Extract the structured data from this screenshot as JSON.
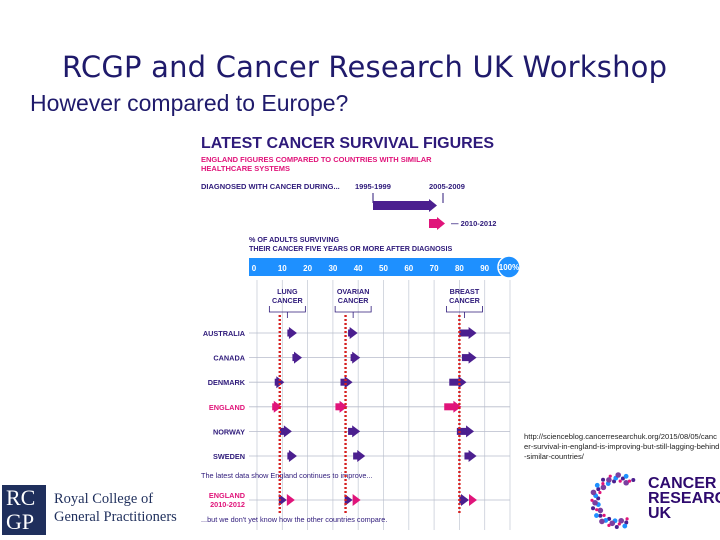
{
  "slide": {
    "title": "RCGP and Cancer Research UK Workshop",
    "subtitle": "However compared to Europe?",
    "source_note": "http://scienceblog.cancerresearchuk.org/2015/08/05/cancer-survival-in-england-is-improving-but-still-lagging-behind-similar-countries/"
  },
  "logos": {
    "rcgp": {
      "letters_top": "RC",
      "letters_bottom": "GP",
      "line1": "Royal College of",
      "line2": "General Practitioners"
    },
    "cruk": {
      "line1": "CANCER",
      "line2": "RESEARCH",
      "line3": "UK"
    }
  },
  "colors": {
    "navy": "#2e1a7a",
    "purple": "#4b1f8f",
    "magenta": "#e0147a",
    "blue": "#1e90ff",
    "red_dots": "#d62020",
    "text": "#2e1a7a"
  },
  "chart_data": {
    "type": "dot-plot",
    "title": "LATEST CANCER SURVIVAL FIGURES",
    "subtitle_lines": [
      "ENGLAND FIGURES COMPARED TO COUNTRIES WITH SIMILAR",
      "HEALTHCARE SYSTEMS"
    ],
    "legend": {
      "diagnosed_label": "DIAGNOSED WITH CANCER DURING...",
      "periods": [
        "1995-1999",
        "2005-2009"
      ],
      "current_period": "2010-2012"
    },
    "axis": {
      "label_lines": [
        "% OF ADULTS SURVIVING",
        "THEIR CANCER FIVE YEARS OR MORE AFTER DIAGNOSIS"
      ],
      "ticks": [
        "0",
        "10",
        "20",
        "30",
        "40",
        "50",
        "60",
        "70",
        "80",
        "90",
        "100%"
      ],
      "xlim": [
        0,
        100
      ]
    },
    "cancers": [
      {
        "name_lines": [
          "LUNG",
          "CANCER"
        ],
        "center": 12
      },
      {
        "name_lines": [
          "OVARIAN",
          "CANCER"
        ],
        "center": 38
      },
      {
        "name_lines": [
          "BREAST",
          "CANCER"
        ],
        "center": 82
      }
    ],
    "countries": [
      {
        "name": "AUSTRALIA",
        "england": false,
        "series": [
          {
            "cancer": "lung",
            "from": 12,
            "to": 15
          },
          {
            "cancer": "ovarian",
            "from": 36,
            "to": 39
          },
          {
            "cancer": "breast",
            "from": 80,
            "to": 86
          }
        ]
      },
      {
        "name": "CANADA",
        "england": false,
        "series": [
          {
            "cancer": "lung",
            "from": 14,
            "to": 17
          },
          {
            "cancer": "ovarian",
            "from": 37,
            "to": 40
          },
          {
            "cancer": "breast",
            "from": 81,
            "to": 86
          }
        ]
      },
      {
        "name": "DENMARK",
        "england": false,
        "series": [
          {
            "cancer": "lung",
            "from": 7,
            "to": 10
          },
          {
            "cancer": "ovarian",
            "from": 33,
            "to": 37
          },
          {
            "cancer": "breast",
            "from": 76,
            "to": 82
          }
        ]
      },
      {
        "name": "ENGLAND",
        "england": true,
        "series": [
          {
            "cancer": "lung",
            "from": 6,
            "to": 9
          },
          {
            "cancer": "ovarian",
            "from": 31,
            "to": 35
          },
          {
            "cancer": "breast",
            "from": 74,
            "to": 80
          }
        ]
      },
      {
        "name": "NORWAY",
        "england": false,
        "series": [
          {
            "cancer": "lung",
            "from": 9,
            "to": 13
          },
          {
            "cancer": "ovarian",
            "from": 36,
            "to": 40
          },
          {
            "cancer": "breast",
            "from": 79,
            "to": 85
          }
        ]
      },
      {
        "name": "SWEDEN",
        "england": false,
        "series": [
          {
            "cancer": "lung",
            "from": 12,
            "to": 15
          },
          {
            "cancer": "ovarian",
            "from": 38,
            "to": 42
          },
          {
            "cancer": "breast",
            "from": 82,
            "to": 86
          }
        ]
      }
    ],
    "england_latest": {
      "label_lines": [
        "ENGLAND",
        "2010-2012"
      ],
      "intro": "The latest data show England continues to improve...",
      "series": [
        {
          "cancer": "lung",
          "from": 9,
          "to": 11
        },
        {
          "cancer": "ovarian",
          "from": 35,
          "to": 37
        },
        {
          "cancer": "breast",
          "from": 80,
          "to": 83
        }
      ]
    },
    "footer": "...but we don't yet know how the other countries compare."
  }
}
